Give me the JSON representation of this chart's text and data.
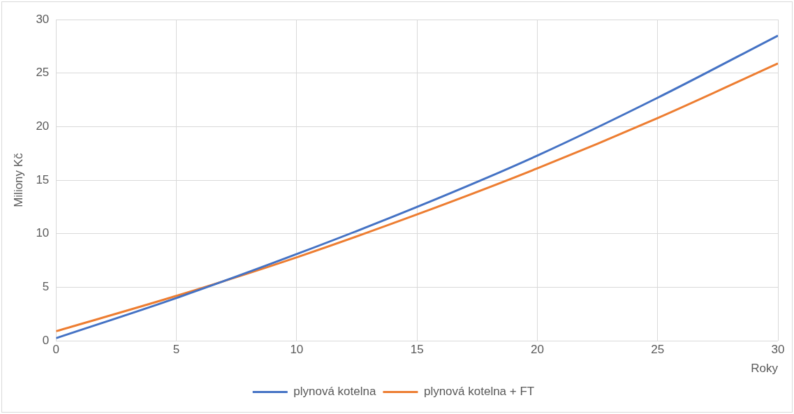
{
  "chart_data": {
    "type": "line",
    "xlabel": "Roky",
    "ylabel": "Miliony Kč",
    "x": [
      0,
      5,
      10,
      15,
      20,
      25,
      30
    ],
    "series": [
      {
        "name": "plynová kotelna",
        "color": "#4472c4",
        "values": [
          0.25,
          4.0,
          8.1,
          12.5,
          17.3,
          22.7,
          28.5
        ]
      },
      {
        "name": "plynová kotelna + FT",
        "color": "#ed7d31",
        "values": [
          0.9,
          4.2,
          7.8,
          11.8,
          16.1,
          20.8,
          25.9
        ]
      }
    ],
    "xlim": [
      0,
      30
    ],
    "xticks": [
      0,
      5,
      10,
      15,
      20,
      25,
      30
    ],
    "ylim": [
      0,
      30
    ],
    "yticks": [
      0,
      5,
      10,
      15,
      20,
      25,
      30
    ],
    "grid": true,
    "legend": "bottom",
    "marker": "none",
    "line_style": "solid"
  }
}
